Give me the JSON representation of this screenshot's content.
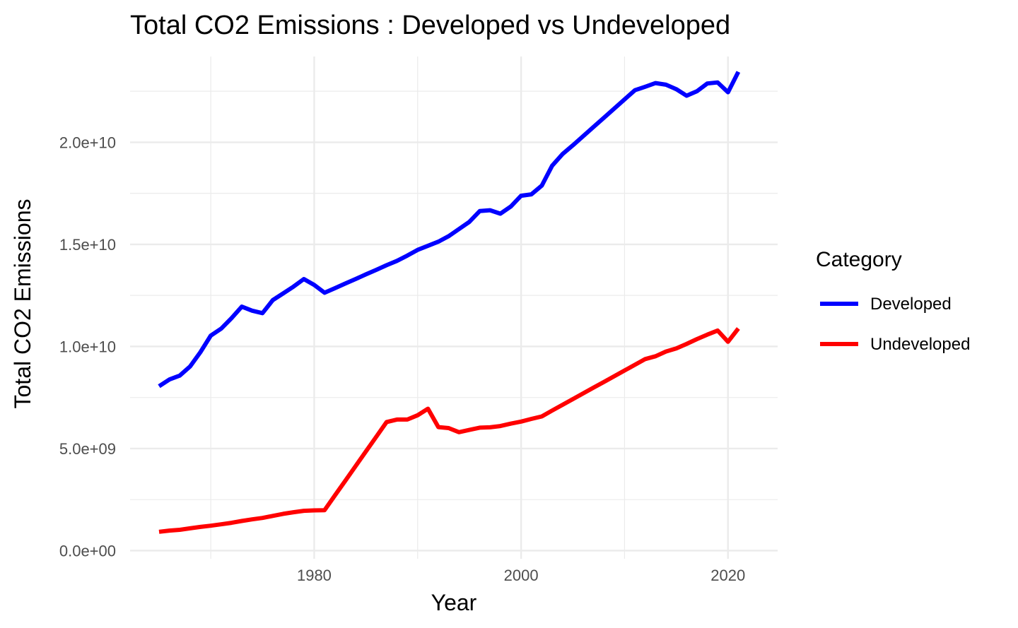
{
  "chart_data": {
    "type": "line",
    "title": "Total CO2 Emissions : Developed vs Undeveloped",
    "xlabel": "Year",
    "ylabel": "Total CO2 Emissions",
    "xlim": [
      1962.2,
      2024.8
    ],
    "ylim": [
      -400000000.0,
      24200000000.0
    ],
    "x_ticks": [
      1980,
      2000,
      2020
    ],
    "x_tick_labels": [
      "1980",
      "2000",
      "2020"
    ],
    "x_minor_ticks": [
      1970,
      1990,
      2010
    ],
    "y_ticks": [
      0,
      5000000000,
      10000000000,
      15000000000,
      20000000000
    ],
    "y_tick_labels": [
      "0.0e+00",
      "5.0e+09",
      "1.0e+10",
      "1.5e+10",
      "2.0e+10"
    ],
    "y_minor_ticks": [
      2500000000,
      7500000000,
      12500000000,
      17500000000,
      22500000000
    ],
    "grid": true,
    "legend": {
      "title": "Category",
      "position": "right"
    },
    "x": [
      1965,
      1966,
      1967,
      1968,
      1969,
      1970,
      1971,
      1972,
      1973,
      1974,
      1975,
      1976,
      1977,
      1978,
      1979,
      1980,
      1981,
      1982,
      1983,
      1984,
      1985,
      1986,
      1987,
      1988,
      1989,
      1990,
      1991,
      1992,
      1993,
      1994,
      1995,
      1996,
      1997,
      1998,
      1999,
      2000,
      2001,
      2002,
      2003,
      2004,
      2005,
      2006,
      2007,
      2008,
      2009,
      2010,
      2011,
      2012,
      2013,
      2014,
      2015,
      2016,
      2017,
      2018,
      2019,
      2020,
      2021
    ],
    "series": [
      {
        "name": "Developed",
        "color": "#0000ff",
        "values": [
          8050000000.0,
          8380000000.0,
          8570000000.0,
          9020000000.0,
          9720000000.0,
          10530000000.0,
          10870000000.0,
          11380000000.0,
          11950000000.0,
          11750000000.0,
          11630000000.0,
          12270000000.0,
          12600000000.0,
          12930000000.0,
          13300000000.0,
          13010000000.0,
          12630000000.0,
          12850000000.0,
          13080000000.0,
          13300000000.0,
          13530000000.0,
          13750000000.0,
          13980000000.0,
          14190000000.0,
          14450000000.0,
          14730000000.0,
          14930000000.0,
          15130000000.0,
          15400000000.0,
          15750000000.0,
          16100000000.0,
          16630000000.0,
          16670000000.0,
          16500000000.0,
          16850000000.0,
          17380000000.0,
          17450000000.0,
          17880000000.0,
          18850000000.0,
          19420000000.0,
          19850000000.0,
          20300000000.0,
          20750000000.0,
          21200000000.0,
          21650000000.0,
          22100000000.0,
          22550000000.0,
          22720000000.0,
          22900000000.0,
          22820000000.0,
          22600000000.0,
          22280000000.0,
          22500000000.0,
          22880000000.0,
          22930000000.0,
          22450000000.0,
          23450000000.0
        ]
      },
      {
        "name": "Undeveloped",
        "color": "#ff0000",
        "values": [
          920000000.0,
          980000000.0,
          1020000000.0,
          1090000000.0,
          1160000000.0,
          1220000000.0,
          1290000000.0,
          1360000000.0,
          1450000000.0,
          1530000000.0,
          1600000000.0,
          1700000000.0,
          1800000000.0,
          1880000000.0,
          1950000000.0,
          1970000000.0,
          1980000000.0,
          2700000000.0,
          3420000000.0,
          4140000000.0,
          4860000000.0,
          5580000000.0,
          6300000000.0,
          6420000000.0,
          6420000000.0,
          6630000000.0,
          6950000000.0,
          6050000000.0,
          6000000000.0,
          5800000000.0,
          5910000000.0,
          6020000000.0,
          6040000000.0,
          6100000000.0,
          6220000000.0,
          6320000000.0,
          6450000000.0,
          6570000000.0,
          6860000000.0,
          7140000000.0,
          7420000000.0,
          7700000000.0,
          7980000000.0,
          8260000000.0,
          8540000000.0,
          8820000000.0,
          9100000000.0,
          9380000000.0,
          9520000000.0,
          9750000000.0,
          9900000000.0,
          10120000000.0,
          10360000000.0,
          10580000000.0,
          10780000000.0,
          10230000000.0,
          10880000000.0
        ]
      }
    ]
  }
}
